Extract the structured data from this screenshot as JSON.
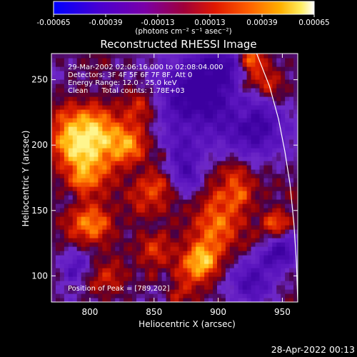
{
  "colorbar": {
    "tick_labels": [
      "-0.00065",
      "-0.00039",
      "-0.00013",
      "0.00013",
      "0.00039",
      "0.00065"
    ],
    "unit_label": "(photons cm⁻² s⁻¹ asec⁻²)",
    "range": [
      -0.00065,
      0.00065
    ]
  },
  "chart_data": {
    "type": "heatmap",
    "title": "Reconstructed RHESSI Image",
    "xlabel": "Heliocentric X (arcsec)",
    "ylabel": "Heliocentric Y (arcsec)",
    "xlim": [
      770,
      962
    ],
    "ylim": [
      80,
      270
    ],
    "xticks": [
      800,
      850,
      900,
      950
    ],
    "yticks": [
      100,
      150,
      200,
      250
    ],
    "annotations": [
      "29-Mar-2002 02:06:16.000 to 02:08:04.000",
      "Detectors: 3F 4F 5F 6F 7F 8F, Att 0",
      "Energy Range: 12.0 - 25.0 keV",
      "Clean      Total counts: 1.78E+03"
    ],
    "peak_label": "Position of Peak = [789,202]",
    "peak": [
      789,
      202
    ],
    "limb_points": [
      [
        930,
        270
      ],
      [
        940,
        245
      ],
      [
        947,
        220
      ],
      [
        952,
        195
      ],
      [
        956,
        170
      ],
      [
        959,
        140
      ],
      [
        961,
        110
      ],
      [
        962,
        80
      ]
    ]
  },
  "footer": {
    "timestamp": "28-Apr-2022 00:13"
  }
}
